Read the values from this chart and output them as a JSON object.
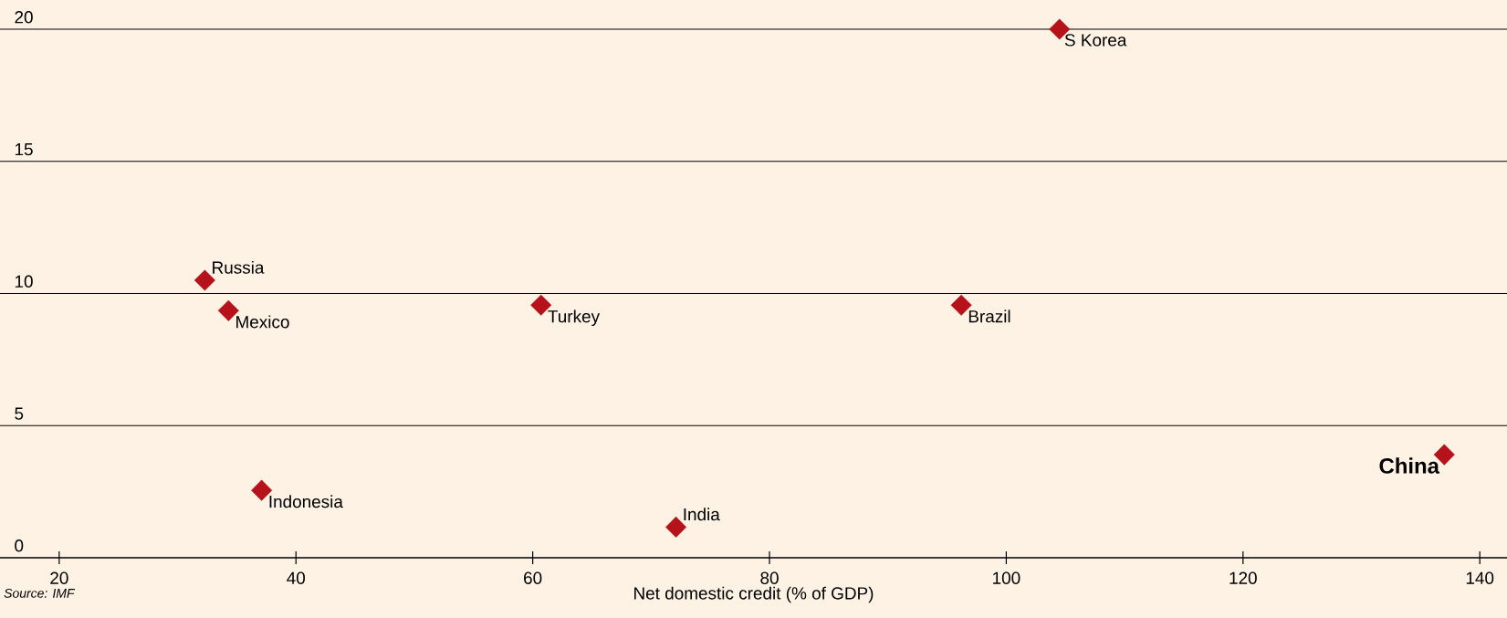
{
  "chart_data": {
    "type": "scatter",
    "xlabel": "Net domestic credit (% of GDP)",
    "x": [
      104.5,
      32.3,
      34.3,
      60.7,
      96.2,
      37.1,
      72.1,
      137.0
    ],
    "values": [
      20,
      10.5,
      9.35,
      9.56,
      9.56,
      2.55,
      1.16,
      3.9
    ],
    "color": "#b5121b",
    "marker": "diamond",
    "grid": "y",
    "xlim": [
      15,
      142.3
    ],
    "ylim": [
      0,
      20
    ],
    "xticks": [
      20,
      40,
      60,
      80,
      100,
      120,
      140
    ],
    "yticks": [
      0,
      5,
      10,
      15,
      20
    ],
    "annotations": [
      {
        "text": "S Korea",
        "x": 104.5,
        "y": 20
      },
      {
        "text": "Russia",
        "x": 32.3,
        "y": 10.5
      },
      {
        "text": "Mexico",
        "x": 34.3,
        "y": 9.35
      },
      {
        "text": "Turkey",
        "x": 60.7,
        "y": 9.56
      },
      {
        "text": "Brazil",
        "x": 96.2,
        "y": 9.56
      },
      {
        "text": "Indonesia",
        "x": 37.1,
        "y": 2.55
      },
      {
        "text": "India",
        "x": 72.1,
        "y": 1.16
      },
      {
        "text": "**China**",
        "x": 137.0,
        "y": 3.9
      },
      "*Source: IMF*"
    ]
  }
}
